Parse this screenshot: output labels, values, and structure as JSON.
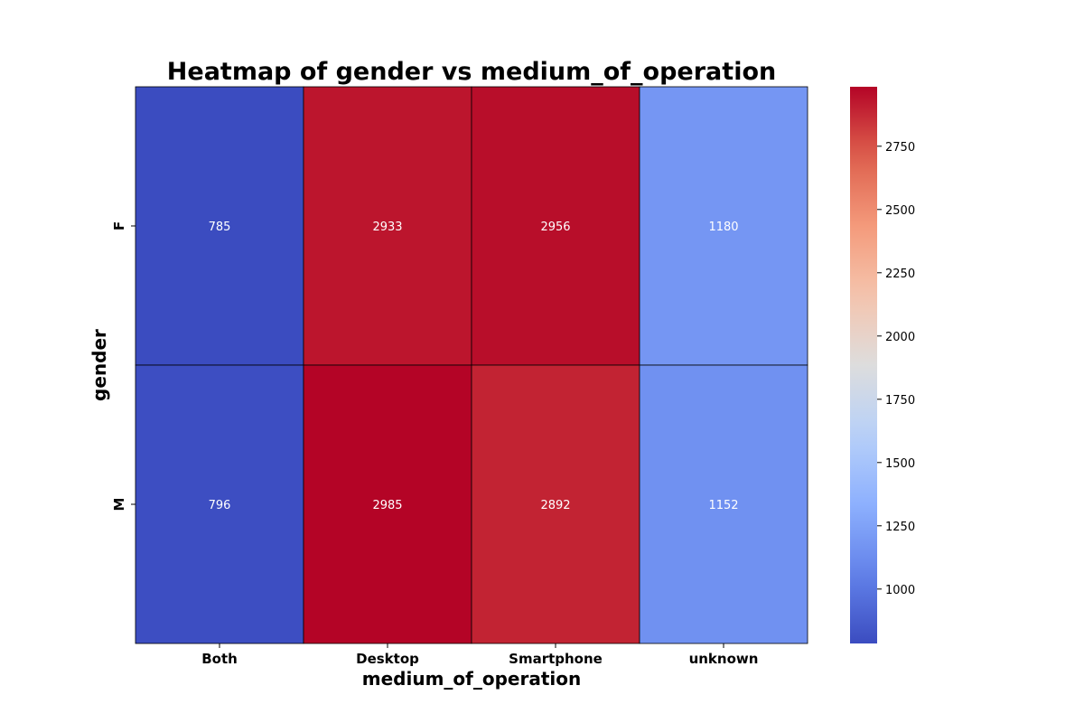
{
  "chart_data": {
    "type": "heatmap",
    "title": "Heatmap of gender vs medium_of_operation",
    "xlabel": "medium_of_operation",
    "ylabel": "gender",
    "x_categories": [
      "Both",
      "Desktop",
      "Smartphone",
      "unknown"
    ],
    "y_categories": [
      "F",
      "M"
    ],
    "values": [
      [
        785,
        2933,
        2956,
        1180
      ],
      [
        796,
        2985,
        2892,
        1152
      ]
    ],
    "colormap": "coolwarm",
    "color_range": [
      785,
      2985
    ],
    "colorbar_ticks": [
      1000,
      1250,
      1500,
      1750,
      2000,
      2250,
      2500,
      2750
    ],
    "cell_annotation_color": "#ffffff",
    "grid_line_color": "#000000"
  }
}
